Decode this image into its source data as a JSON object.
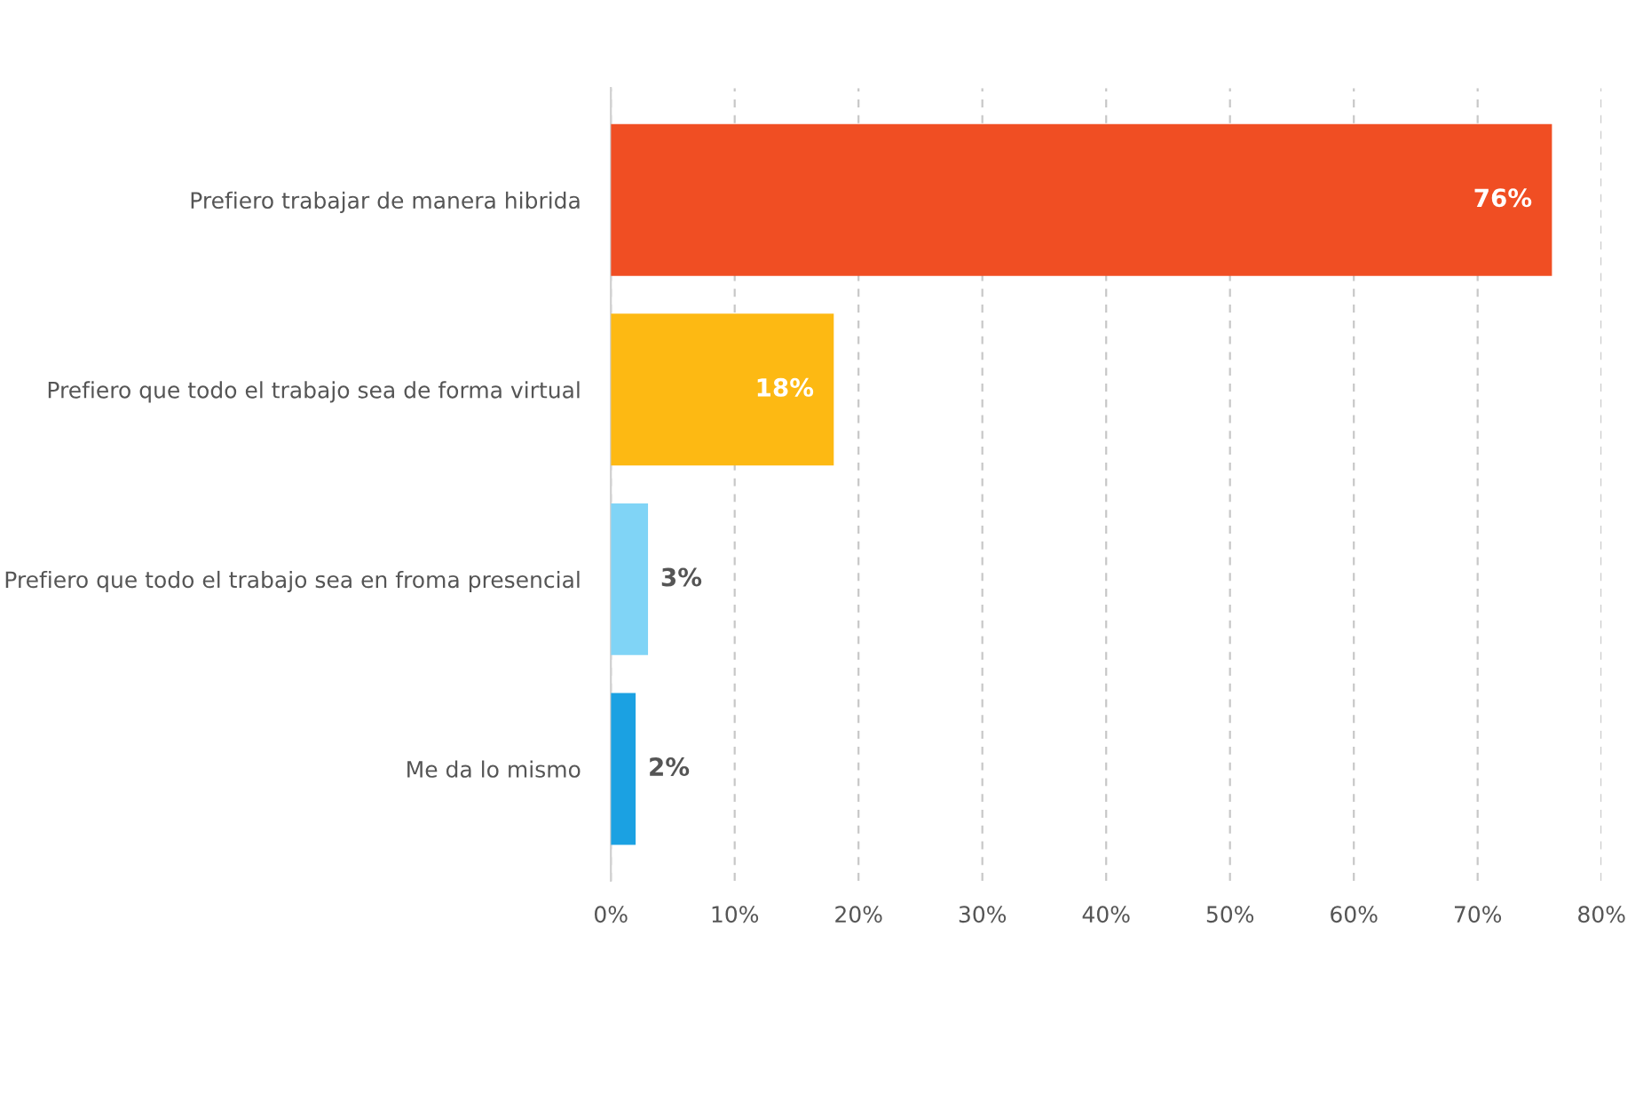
{
  "chart_data": {
    "type": "bar",
    "orientation": "horizontal",
    "categories": [
      "Prefiero trabajar de manera hibrida",
      "Prefiero que todo el trabajo sea de forma virtual",
      "Prefiero que todo el trabajo sea en froma presencial",
      "Me da lo mismo"
    ],
    "values": [
      76,
      18,
      3,
      2
    ],
    "colors": [
      "#f04e23",
      "#fdb913",
      "#80d4f6",
      "#1ba1e2"
    ],
    "value_labels": [
      "76%",
      "18%",
      "3%",
      "2%"
    ],
    "xlim": [
      0,
      80
    ],
    "xticks": [
      {
        "value": 0,
        "label": "0%"
      },
      {
        "value": 10,
        "label": "10%"
      },
      {
        "value": 20,
        "label": "20%"
      },
      {
        "value": 30,
        "label": "30%"
      },
      {
        "value": 40,
        "label": "40%"
      },
      {
        "value": 50,
        "label": "50%"
      },
      {
        "value": 60,
        "label": "60%"
      },
      {
        "value": 70,
        "label": "70%"
      },
      {
        "value": 80,
        "label": "80%"
      }
    ],
    "grid": "x",
    "legend": false
  }
}
